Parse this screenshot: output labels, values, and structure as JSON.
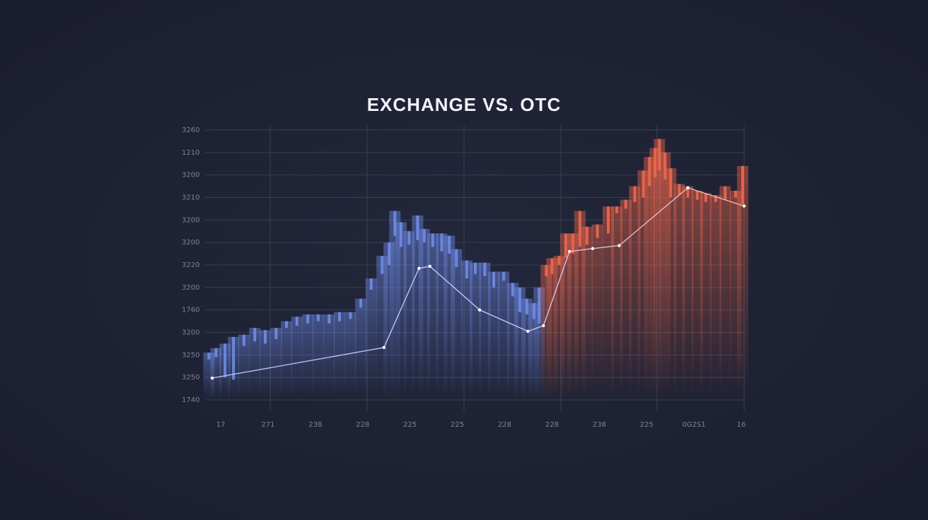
{
  "chart_data": {
    "type": "candlestick",
    "title": "EXCHANGE VS. OTC",
    "xlim": [
      -0.33,
      11.06
    ],
    "ylim": [
      0,
      12
    ],
    "grid": true,
    "xticks": [
      {
        "value": 0,
        "label": "17"
      },
      {
        "value": 1,
        "label": "271"
      },
      {
        "value": 2,
        "label": "238"
      },
      {
        "value": 3,
        "label": "228"
      },
      {
        "value": 4,
        "label": "225"
      },
      {
        "value": 5,
        "label": "225"
      },
      {
        "value": 6,
        "label": "228"
      },
      {
        "value": 7,
        "label": "228"
      },
      {
        "value": 8,
        "label": "238"
      },
      {
        "value": 9,
        "label": "225"
      },
      {
        "value": 10,
        "label": "0G2S1"
      },
      {
        "value": 11,
        "label": "16"
      }
    ],
    "yticks": [
      {
        "value": 0,
        "label": "1740"
      },
      {
        "value": 1,
        "label": "3250"
      },
      {
        "value": 2,
        "label": "3250"
      },
      {
        "value": 3,
        "label": "3200"
      },
      {
        "value": 4,
        "label": "1760"
      },
      {
        "value": 5,
        "label": "3200"
      },
      {
        "value": 6,
        "label": "3220"
      },
      {
        "value": 7,
        "label": "3200"
      },
      {
        "value": 8,
        "label": "3200"
      },
      {
        "value": 9,
        "label": "3210"
      },
      {
        "value": 10,
        "label": "3200"
      },
      {
        "value": 11,
        "label": "1210"
      },
      {
        "value": 12,
        "label": "3260"
      }
    ],
    "series": [
      {
        "type": "candlestick",
        "color": "#6f8ce8",
        "x": [
          -0.25,
          -0.1,
          0.09,
          0.27,
          0.49,
          0.72,
          0.94,
          1.17,
          1.39,
          1.61,
          1.84,
          2.06,
          2.29,
          2.51,
          2.74,
          2.96,
          3.18,
          3.41,
          3.56,
          3.68,
          3.81,
          3.98,
          4.16,
          4.3,
          4.48,
          4.67,
          4.83,
          4.98,
          5.2,
          5.38,
          5.58,
          5.77,
          5.98,
          6.17,
          6.32,
          6.47,
          6.62,
          6.73
        ],
        "open": [
          1.8,
          1.9,
          1.0,
          0.9,
          2.4,
          2.6,
          2.5,
          2.7,
          3.2,
          3.3,
          3.4,
          3.5,
          3.4,
          3.5,
          3.6,
          4.1,
          4.9,
          5.6,
          6.0,
          7.3,
          6.8,
          6.9,
          7.1,
          7.0,
          6.8,
          6.6,
          6.5,
          5.9,
          5.4,
          5.6,
          5.5,
          5.0,
          5.3,
          4.6,
          3.9,
          3.8,
          3.6,
          3.4
        ],
        "close": [
          2.1,
          2.3,
          2.5,
          2.8,
          2.9,
          3.2,
          3.1,
          3.2,
          3.5,
          3.7,
          3.8,
          3.8,
          3.8,
          3.9,
          3.9,
          4.5,
          5.4,
          6.4,
          7.0,
          8.4,
          7.9,
          7.5,
          8.2,
          7.6,
          7.4,
          7.4,
          7.3,
          6.7,
          6.2,
          6.1,
          6.1,
          5.7,
          5.7,
          5.2,
          5.0,
          4.5,
          4.3,
          5.0
        ]
      },
      {
        "type": "candlestick",
        "color": "#f0674a",
        "x": [
          6.88,
          7.0,
          7.15,
          7.29,
          7.44,
          7.59,
          7.74,
          7.96,
          8.19,
          8.37,
          8.56,
          8.75,
          8.93,
          9.06,
          9.18,
          9.27,
          9.39,
          9.51,
          9.69,
          9.87,
          10.07,
          10.25,
          10.46,
          10.66,
          10.88,
          11.03
        ],
        "open": [
          5.5,
          5.6,
          6.0,
          6.3,
          6.5,
          6.8,
          6.9,
          7.2,
          7.4,
          8.3,
          8.5,
          8.8,
          9.0,
          9.5,
          9.9,
          10.2,
          9.8,
          9.0,
          9.1,
          9.0,
          8.9,
          8.8,
          8.8,
          8.9,
          9.0,
          8.7
        ],
        "close": [
          6.0,
          6.3,
          6.4,
          7.4,
          7.4,
          8.4,
          7.7,
          7.8,
          8.6,
          8.6,
          8.9,
          9.5,
          10.2,
          10.8,
          11.2,
          11.6,
          11.0,
          10.3,
          9.6,
          9.5,
          9.3,
          9.2,
          9.1,
          9.5,
          9.3,
          10.4
        ]
      },
      {
        "type": "line",
        "color": "#c8ccf5",
        "x": [
          -0.18,
          3.45,
          4.19,
          4.42,
          5.47,
          6.49,
          6.82,
          7.37,
          7.86,
          8.42,
          9.87,
          11.06
        ],
        "values": [
          0.97,
          2.33,
          5.85,
          5.94,
          4.0,
          3.05,
          3.3,
          6.6,
          6.73,
          6.86,
          9.43,
          8.62
        ]
      }
    ]
  }
}
